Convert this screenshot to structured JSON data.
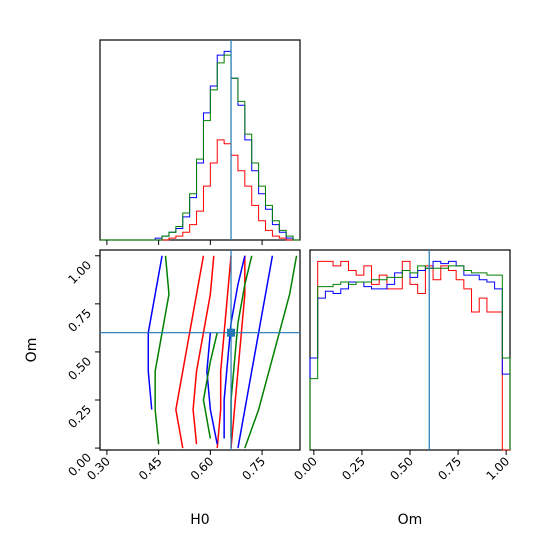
{
  "colors": {
    "series_1": "#ff0000",
    "series_2": "#0000ff",
    "series_3": "#008000",
    "truth": "#1f77b4"
  },
  "chart_data": [
    {
      "type": "histogram",
      "panel": "H0 marginal",
      "xlim": [
        0.28,
        0.86
      ],
      "truth": 0.66,
      "x_ticks": [
        "0.30",
        "0.45",
        "0.60",
        "0.75"
      ],
      "bins": [
        0.28,
        0.3,
        0.32,
        0.34,
        0.36,
        0.38,
        0.4,
        0.42,
        0.44,
        0.46,
        0.48,
        0.5,
        0.52,
        0.54,
        0.56,
        0.58,
        0.6,
        0.62,
        0.64,
        0.66,
        0.68,
        0.7,
        0.72,
        0.74,
        0.76,
        0.78,
        0.8,
        0.82,
        0.84,
        0.86
      ],
      "series": [
        {
          "color": "red",
          "counts": [
            0,
            0,
            0,
            0,
            0,
            0,
            0,
            0,
            0,
            0,
            1,
            2,
            4,
            8,
            15,
            28,
            40,
            52,
            50,
            44,
            36,
            28,
            18,
            10,
            5,
            2,
            1,
            0,
            0
          ]
        },
        {
          "color": "blue",
          "counts": [
            0,
            0,
            0,
            0,
            0,
            0,
            0,
            0,
            1,
            2,
            4,
            6,
            12,
            22,
            40,
            66,
            80,
            96,
            98,
            84,
            70,
            52,
            36,
            24,
            16,
            8,
            4,
            1,
            0
          ]
        },
        {
          "color": "green",
          "counts": [
            0,
            0,
            0,
            0,
            0,
            0,
            0,
            0,
            0,
            2,
            4,
            7,
            14,
            24,
            42,
            62,
            78,
            92,
            96,
            84,
            72,
            55,
            40,
            28,
            18,
            10,
            5,
            2,
            0
          ]
        }
      ]
    },
    {
      "type": "contour",
      "panel": "H0 vs Om",
      "xlabel": "H0",
      "ylabel": "Om",
      "xlim": [
        0.28,
        0.86
      ],
      "ylim": [
        -0.01,
        1.03
      ],
      "x_ticks": [
        "0.30",
        "0.45",
        "0.60",
        "0.75"
      ],
      "y_ticks": [
        "0.00",
        "0.25",
        "0.50",
        "0.75",
        "1.00"
      ],
      "truth": {
        "x": 0.66,
        "y": 0.6
      },
      "series": [
        {
          "color": "red",
          "contours": [
            [
              [
                0.56,
                0.02
              ],
              [
                0.55,
                0.2
              ],
              [
                0.56,
                0.4
              ],
              [
                0.58,
                0.6
              ],
              [
                0.6,
                0.8
              ],
              [
                0.61,
                1.0
              ]
            ],
            [
              [
                0.52,
                0.0
              ],
              [
                0.5,
                0.2
              ],
              [
                0.52,
                0.4
              ],
              [
                0.54,
                0.6
              ],
              [
                0.56,
                0.8
              ],
              [
                0.58,
                1.0
              ]
            ],
            [
              [
                0.62,
                0.0
              ],
              [
                0.63,
                0.2
              ],
              [
                0.63,
                0.4
              ],
              [
                0.64,
                0.6
              ],
              [
                0.65,
                0.8
              ],
              [
                0.66,
                1.0
              ]
            ],
            [
              [
                0.66,
                0.0
              ],
              [
                0.67,
                0.2
              ],
              [
                0.68,
                0.4
              ],
              [
                0.69,
                0.6
              ],
              [
                0.7,
                0.8
              ],
              [
                0.7,
                1.0
              ]
            ]
          ]
        },
        {
          "color": "blue",
          "contours": [
            [
              [
                0.43,
                0.2
              ],
              [
                0.42,
                0.4
              ],
              [
                0.42,
                0.6
              ],
              [
                0.44,
                0.8
              ],
              [
                0.46,
                1.0
              ]
            ],
            [
              [
                0.64,
                0.05
              ],
              [
                0.64,
                0.25
              ],
              [
                0.65,
                0.45
              ],
              [
                0.66,
                0.65
              ],
              [
                0.68,
                0.85
              ],
              [
                0.7,
                1.0
              ]
            ],
            [
              [
                0.68,
                0.0
              ],
              [
                0.7,
                0.2
              ],
              [
                0.72,
                0.4
              ],
              [
                0.74,
                0.6
              ],
              [
                0.76,
                0.8
              ],
              [
                0.78,
                1.0
              ]
            ],
            [
              [
                0.62,
                0.02
              ],
              [
                0.6,
                0.2
              ],
              [
                0.59,
                0.4
              ],
              [
                0.6,
                0.6
              ]
            ]
          ]
        },
        {
          "color": "green",
          "contours": [
            [
              [
                0.45,
                0.02
              ],
              [
                0.44,
                0.2
              ],
              [
                0.44,
                0.4
              ],
              [
                0.46,
                0.6
              ],
              [
                0.48,
                0.8
              ],
              [
                0.47,
                1.0
              ]
            ],
            [
              [
                0.66,
                0.05
              ],
              [
                0.66,
                0.25
              ],
              [
                0.67,
                0.45
              ],
              [
                0.68,
                0.65
              ],
              [
                0.7,
                0.85
              ],
              [
                0.72,
                1.0
              ]
            ],
            [
              [
                0.7,
                0.0
              ],
              [
                0.74,
                0.2
              ],
              [
                0.77,
                0.4
              ],
              [
                0.8,
                0.6
              ],
              [
                0.83,
                0.8
              ],
              [
                0.85,
                1.0
              ]
            ],
            [
              [
                0.6,
                0.05
              ],
              [
                0.58,
                0.25
              ],
              [
                0.6,
                0.45
              ],
              [
                0.62,
                0.6
              ]
            ]
          ]
        }
      ]
    },
    {
      "type": "histogram",
      "panel": "Om marginal",
      "xlabel": "Om",
      "xlim": [
        -0.02,
        1.02
      ],
      "truth": 0.6,
      "x_ticks": [
        "0.00",
        "0.25",
        "0.50",
        "0.75",
        "1.00"
      ],
      "bins": [
        -0.02,
        0.02,
        0.06,
        0.1,
        0.14,
        0.18,
        0.22,
        0.26,
        0.3,
        0.34,
        0.38,
        0.42,
        0.46,
        0.5,
        0.54,
        0.58,
        0.62,
        0.66,
        0.7,
        0.74,
        0.78,
        0.82,
        0.86,
        0.9,
        0.94,
        0.98,
        1.02
      ],
      "series": [
        {
          "color": "red",
          "counts": [
            40,
            82,
            82,
            80,
            82,
            78,
            76,
            80,
            72,
            76,
            70,
            70,
            82,
            72,
            68,
            80,
            74,
            80,
            78,
            74,
            70,
            60,
            66,
            60,
            60,
            0
          ]
        },
        {
          "color": "blue",
          "counts": [
            40,
            66,
            69,
            68,
            70,
            73,
            73,
            71,
            70,
            70,
            72,
            77,
            78,
            75,
            78,
            79,
            82,
            81,
            82,
            80,
            76,
            76,
            74,
            73,
            70,
            33
          ]
        },
        {
          "color": "green",
          "counts": [
            31,
            71,
            71,
            72,
            73,
            72,
            73,
            73,
            74,
            74,
            75,
            75,
            78,
            77,
            80,
            79,
            79,
            79,
            80,
            80,
            78,
            77,
            77,
            76,
            76,
            40
          ]
        }
      ]
    }
  ]
}
